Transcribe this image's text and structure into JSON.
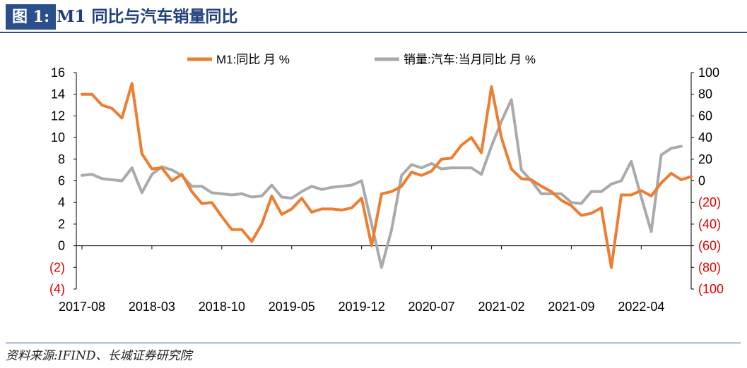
{
  "header": {
    "figure_tag": "图 1:",
    "title": "M1 同比与汽车销量同比"
  },
  "source": "资料来源:IFIND、长城证券研究院",
  "chart_data": {
    "type": "line",
    "x_ticks": [
      "2017-08",
      "2018-03",
      "2018-10",
      "2019-05",
      "2019-12",
      "2020-07",
      "2021-02",
      "2021-09",
      "2022-04"
    ],
    "x_start": "2017-08",
    "left_axis": {
      "ylim": [
        -4,
        16
      ],
      "ticks": [
        16,
        14,
        12,
        10,
        8,
        6,
        4,
        2,
        0,
        -2,
        -4
      ],
      "tick_labels": [
        "16",
        "14",
        "12",
        "10",
        "8",
        "6",
        "4",
        "2",
        "0",
        "(2)",
        "(4)"
      ]
    },
    "right_axis": {
      "ylim": [
        -100,
        100
      ],
      "ticks": [
        100,
        80,
        60,
        40,
        20,
        0,
        -20,
        -40,
        -60,
        -80,
        -100
      ],
      "tick_labels": [
        "100",
        "80",
        "60",
        "40",
        "20",
        "0",
        "(20)",
        "(40)",
        "(60)",
        "(80)",
        "(100"
      ]
    },
    "legend_position": "top",
    "series": [
      {
        "name": "M1:同比 月 %",
        "axis": "left",
        "color": "#ed7d31",
        "values": [
          14.0,
          14.0,
          13.0,
          12.7,
          11.8,
          15.0,
          8.5,
          7.1,
          7.2,
          6.0,
          6.6,
          5.0,
          3.9,
          4.0,
          2.7,
          1.5,
          1.5,
          0.4,
          2.0,
          4.6,
          2.9,
          3.4,
          4.4,
          3.1,
          3.4,
          3.4,
          3.3,
          3.5,
          4.4,
          0.0,
          4.8,
          5.0,
          5.5,
          6.8,
          6.5,
          6.9,
          8.0,
          8.1,
          9.3,
          10.0,
          8.6,
          14.7,
          10.0,
          7.1,
          6.2,
          6.1,
          5.5,
          5.0,
          4.2,
          3.7,
          2.8,
          3.0,
          3.5,
          -2.0,
          4.7,
          4.7,
          5.1,
          4.6,
          5.8,
          6.7,
          6.1,
          6.4
        ]
      },
      {
        "name": "销量:汽车:当月同比 月 %",
        "axis": "right",
        "color": "#aaaaaa",
        "values": [
          5,
          6,
          2,
          1,
          0,
          12,
          -11,
          6,
          13,
          10,
          5,
          -5,
          -5,
          -11,
          -12,
          -13,
          -12,
          -15,
          -14,
          -4,
          -15,
          -16,
          -10,
          -5,
          -8,
          -6,
          -5,
          -4,
          0,
          -40,
          -80,
          -45,
          5,
          15,
          12,
          16,
          11,
          12,
          12,
          12,
          6,
          32,
          55,
          75,
          10,
          0,
          -12,
          -12,
          -12,
          -20,
          -21,
          -10,
          -10,
          -3,
          0,
          18,
          -15,
          -47,
          24,
          30,
          32
        ]
      }
    ]
  }
}
